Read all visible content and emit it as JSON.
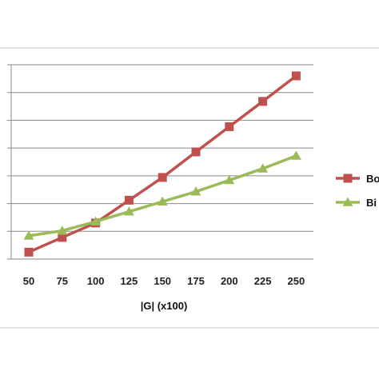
{
  "chart_data": {
    "type": "line",
    "x": [
      50,
      75,
      100,
      125,
      150,
      175,
      200,
      225,
      250
    ],
    "xlabel": "|G| (x100)",
    "ylabel": "",
    "title": "",
    "grid": true,
    "legend_position": "right",
    "series": [
      {
        "name": "Bo",
        "color": "#c0504d",
        "marker": "square",
        "values": [
          0.25,
          0.78,
          1.3,
          2.12,
          2.94,
          3.86,
          4.77,
          5.68,
          6.6
        ]
      },
      {
        "name": "Bi",
        "color": "#9bbb59",
        "marker": "triangle",
        "values": [
          0.84,
          1.02,
          1.35,
          1.71,
          2.07,
          2.43,
          2.84,
          3.26,
          3.72
        ]
      }
    ],
    "ylim": [
      0,
      7
    ]
  }
}
